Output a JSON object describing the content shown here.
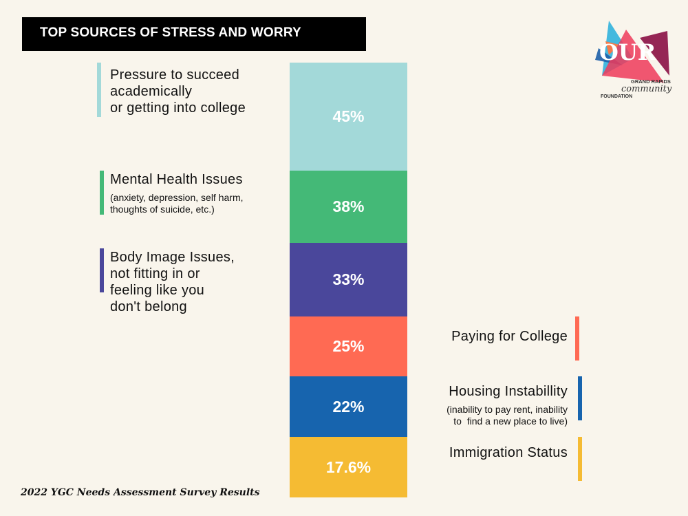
{
  "header": {
    "title": "TOP SOURCES OF STRESS AND WORRY"
  },
  "logo": {
    "word": "OUR",
    "line1": "GRAND RAPIDS",
    "line2": "community",
    "line3": "FOUNDATION"
  },
  "footer": {
    "text": "2022 YGC Needs Assessment Survey Results"
  },
  "chart_data": {
    "type": "bar",
    "title": "TOP SOURCES OF STRESS AND WORRY",
    "orientation": "stacked-vertical",
    "unit": "%",
    "categories": [
      "Pressure to succeed academically or getting into college",
      "Mental Health Issues",
      "Body Image Issues, not fitting in or feeling like you don't belong",
      "Paying for College",
      "Housing Instabillity",
      "Immigration Status"
    ],
    "values": [
      45,
      38,
      33,
      25,
      22,
      17.6
    ],
    "value_labels": [
      "45%",
      "38%",
      "33%",
      "25%",
      "22%",
      "17.6%"
    ],
    "colors": [
      "#a3d9d9",
      "#44b977",
      "#4a479b",
      "#ff6a53",
      "#1764ae",
      "#f5bb33"
    ],
    "items": [
      {
        "label_lines": [
          "Pressure to succeed",
          "academically",
          "or getting into college"
        ],
        "sub": "",
        "side": "left"
      },
      {
        "label_lines": [
          "Mental Health Issues"
        ],
        "sub_lines": [
          "(anxiety, depression, self harm,",
          "thoughts of suicide, etc.)"
        ],
        "side": "left"
      },
      {
        "label_lines": [
          "Body Image Issues,",
          "not fitting in or",
          "feeling like you",
          "don't belong"
        ],
        "side": "left"
      },
      {
        "label_lines": [
          "Paying for College"
        ],
        "side": "right"
      },
      {
        "label_lines": [
          "Housing Instabillity"
        ],
        "sub_lines": [
          "(inability to pay rent, inability",
          "to  find a new place to live)"
        ],
        "side": "right"
      },
      {
        "label_lines": [
          "Immigration Status"
        ],
        "side": "right"
      }
    ],
    "xlabel": "",
    "ylabel": ""
  }
}
